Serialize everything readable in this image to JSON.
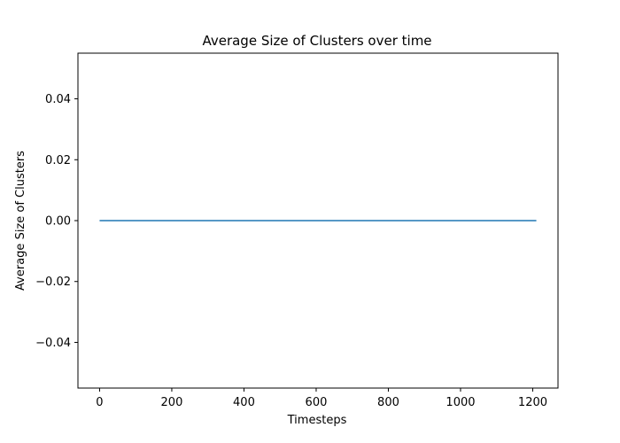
{
  "chart_data": {
    "type": "line",
    "title": "Average Size of Clusters over time",
    "xlabel": "Timesteps",
    "ylabel": "Average Size of Clusters",
    "xlim": [
      -60,
      1270
    ],
    "ylim": [
      -0.055,
      0.055
    ],
    "xticks": [
      0,
      200,
      400,
      600,
      800,
      1000,
      1200
    ],
    "xtick_labels": [
      "0",
      "200",
      "400",
      "600",
      "800",
      "1000",
      "1200"
    ],
    "yticks": [
      -0.04,
      -0.02,
      0.0,
      0.02,
      0.04
    ],
    "ytick_labels": [
      "−0.04",
      "−0.02",
      "0.00",
      "0.02",
      "0.04"
    ],
    "grid": false,
    "series": [
      {
        "color": "#1f77b4",
        "x": [
          0,
          1210
        ],
        "y": [
          0.0,
          0.0
        ]
      }
    ]
  }
}
